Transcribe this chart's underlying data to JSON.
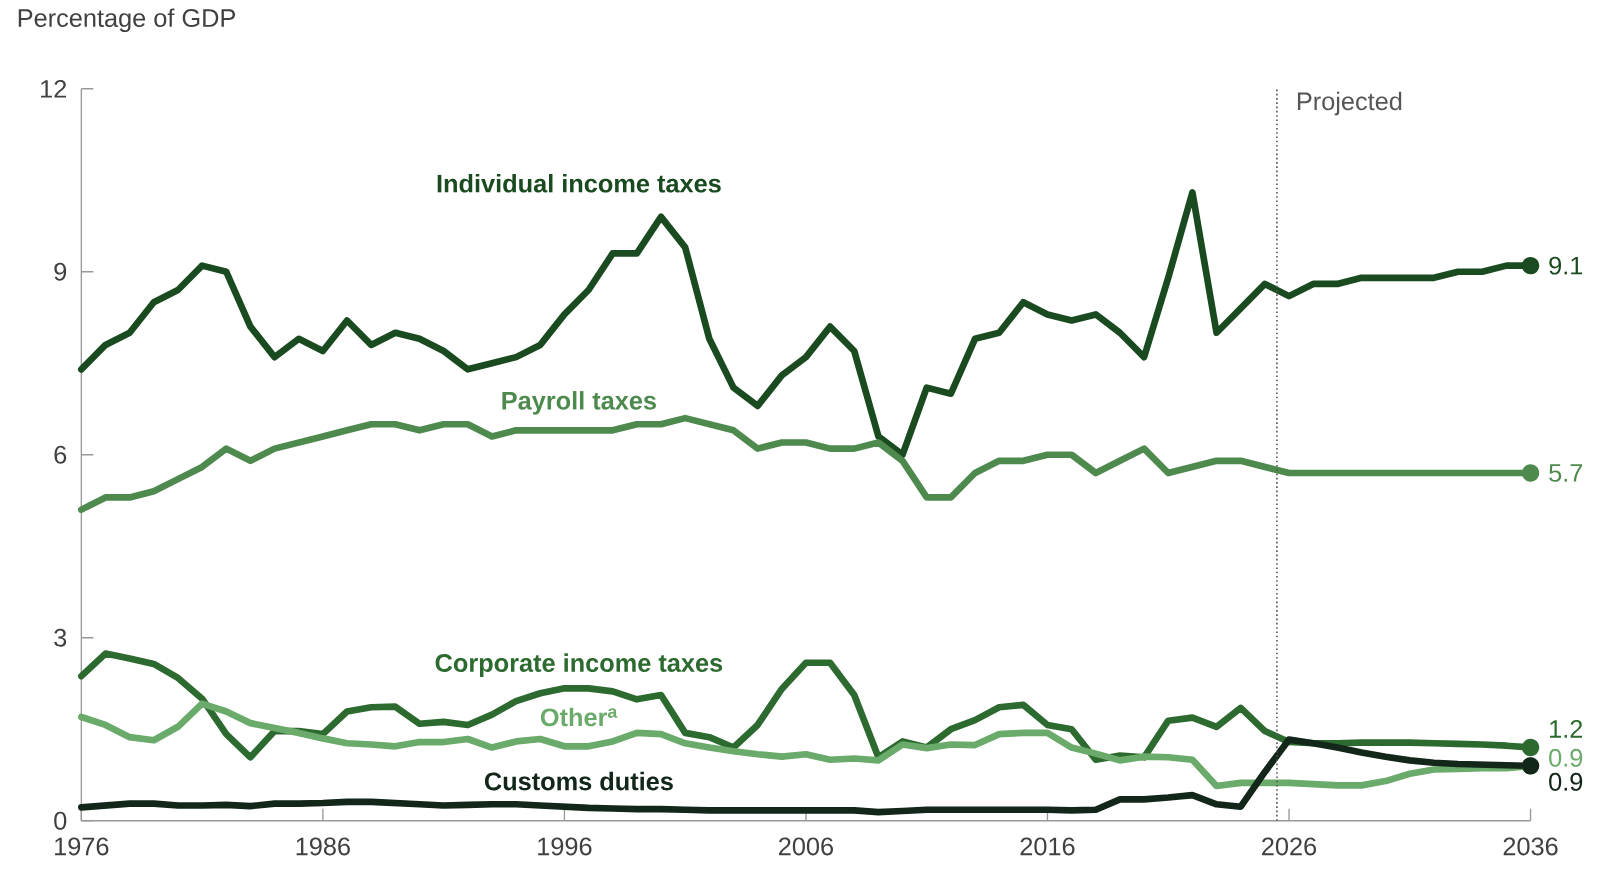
{
  "chart_data": {
    "type": "line",
    "ylabel": "Percentage of GDP",
    "x": [
      1976,
      1977,
      1978,
      1979,
      1980,
      1981,
      1982,
      1983,
      1984,
      1985,
      1986,
      1987,
      1988,
      1989,
      1990,
      1991,
      1992,
      1993,
      1994,
      1995,
      1996,
      1997,
      1998,
      1999,
      2000,
      2001,
      2002,
      2003,
      2004,
      2005,
      2006,
      2007,
      2008,
      2009,
      2010,
      2011,
      2012,
      2013,
      2014,
      2015,
      2016,
      2017,
      2018,
      2019,
      2020,
      2021,
      2022,
      2023,
      2024,
      2025,
      2026,
      2027,
      2028,
      2029,
      2030,
      2031,
      2032,
      2033,
      2034,
      2035,
      2036
    ],
    "xlim": [
      1976,
      2036
    ],
    "xticks": [
      1976,
      1986,
      1996,
      2006,
      2016,
      2026,
      2036
    ],
    "ylim": [
      0,
      12
    ],
    "yticks": [
      0,
      3,
      6,
      9,
      12
    ],
    "series": [
      {
        "name": "Individual income taxes",
        "color": "#1a4a1f",
        "values": [
          7.4,
          7.8,
          8.0,
          8.5,
          8.7,
          9.1,
          9.0,
          8.1,
          7.6,
          7.9,
          7.7,
          8.2,
          7.8,
          8.0,
          7.9,
          7.7,
          7.4,
          7.5,
          7.6,
          7.8,
          8.3,
          8.7,
          9.3,
          9.3,
          9.9,
          9.4,
          7.9,
          7.1,
          6.8,
          7.3,
          7.6,
          8.1,
          7.7,
          6.3,
          6.0,
          7.1,
          7.0,
          7.9,
          8.0,
          8.5,
          8.3,
          8.2,
          8.3,
          8.0,
          7.6,
          8.9,
          10.3,
          8.0,
          8.4,
          8.8,
          8.6,
          8.8,
          8.8,
          8.9,
          8.9,
          8.9,
          8.9,
          9.0,
          9.0,
          9.1,
          9.1
        ],
        "value_labels": [
          null,
          null,
          null,
          null,
          null,
          null,
          null,
          null,
          null,
          null,
          null,
          null,
          null,
          null,
          null,
          null,
          null,
          null,
          null,
          null,
          null,
          null,
          null,
          null,
          null,
          null,
          null,
          null,
          null,
          null,
          null,
          null,
          null,
          null,
          null,
          null,
          null,
          null,
          null,
          null,
          null,
          null,
          null,
          null,
          null,
          null,
          null,
          null,
          null,
          null,
          null,
          null,
          null,
          null,
          null,
          null,
          null,
          null,
          null,
          null,
          "9.1"
        ]
      },
      {
        "name": "Payroll taxes",
        "color": "#4e8a4e",
        "values": [
          5.1,
          5.3,
          5.3,
          5.4,
          5.6,
          5.8,
          6.1,
          5.9,
          6.1,
          6.2,
          6.3,
          6.4,
          6.5,
          6.5,
          6.4,
          6.5,
          6.5,
          6.3,
          6.4,
          6.4,
          6.4,
          6.4,
          6.4,
          6.5,
          6.5,
          6.6,
          6.5,
          6.4,
          6.1,
          6.2,
          6.2,
          6.1,
          6.1,
          6.2,
          5.9,
          5.3,
          5.3,
          5.7,
          5.9,
          5.9,
          6.0,
          6.0,
          5.7,
          5.9,
          6.1,
          5.7,
          5.8,
          5.9,
          5.9,
          5.8,
          5.7,
          5.7,
          5.7,
          5.7,
          5.7,
          5.7,
          5.7,
          5.7,
          5.7,
          5.7,
          5.7
        ],
        "value_labels": [
          null,
          null,
          null,
          null,
          null,
          null,
          null,
          null,
          null,
          null,
          null,
          null,
          null,
          null,
          null,
          null,
          null,
          null,
          null,
          null,
          null,
          null,
          null,
          null,
          null,
          null,
          null,
          null,
          null,
          null,
          null,
          null,
          null,
          null,
          null,
          null,
          null,
          null,
          null,
          null,
          null,
          null,
          null,
          null,
          null,
          null,
          null,
          null,
          null,
          null,
          null,
          null,
          null,
          null,
          null,
          null,
          null,
          null,
          null,
          null,
          "5.7"
        ]
      },
      {
        "name": "Corporate income taxes",
        "color": "#2d6a30",
        "values": [
          2.37,
          2.74,
          2.66,
          2.57,
          2.34,
          2.0,
          1.42,
          1.04,
          1.47,
          1.47,
          1.42,
          1.79,
          1.86,
          1.87,
          1.59,
          1.62,
          1.57,
          1.74,
          1.96,
          2.09,
          2.17,
          2.17,
          2.12,
          1.99,
          2.06,
          1.44,
          1.37,
          1.2,
          1.57,
          2.16,
          2.59,
          2.59,
          2.06,
          1.04,
          1.3,
          1.2,
          1.5,
          1.65,
          1.86,
          1.9,
          1.57,
          1.5,
          1.0,
          1.07,
          1.04,
          1.64,
          1.69,
          1.54,
          1.85,
          1.47,
          1.29,
          1.27,
          1.27,
          1.28,
          1.28,
          1.28,
          1.27,
          1.26,
          1.25,
          1.23,
          1.2
        ],
        "value_labels": [
          null,
          null,
          null,
          null,
          null,
          null,
          null,
          null,
          null,
          null,
          null,
          null,
          null,
          null,
          null,
          null,
          null,
          null,
          null,
          null,
          null,
          null,
          null,
          null,
          null,
          null,
          null,
          null,
          null,
          null,
          null,
          null,
          null,
          null,
          null,
          null,
          null,
          null,
          null,
          null,
          null,
          null,
          null,
          null,
          null,
          null,
          null,
          null,
          null,
          null,
          null,
          null,
          null,
          null,
          null,
          null,
          null,
          null,
          null,
          null,
          "1.2"
        ]
      },
      {
        "name": "Other$^{a}$",
        "color": "#6aaa6a",
        "values": [
          1.7,
          1.57,
          1.37,
          1.32,
          1.54,
          1.92,
          1.79,
          1.6,
          1.52,
          1.44,
          1.35,
          1.27,
          1.25,
          1.22,
          1.29,
          1.29,
          1.34,
          1.2,
          1.3,
          1.34,
          1.22,
          1.22,
          1.3,
          1.44,
          1.42,
          1.27,
          1.2,
          1.14,
          1.09,
          1.05,
          1.09,
          1.0,
          1.02,
          0.99,
          1.25,
          1.19,
          1.25,
          1.24,
          1.42,
          1.44,
          1.44,
          1.2,
          1.1,
          0.99,
          1.05,
          1.04,
          1.0,
          0.57,
          0.62,
          0.62,
          0.62,
          0.6,
          0.58,
          0.58,
          0.65,
          0.77,
          0.84,
          0.85,
          0.86,
          0.86,
          0.9
        ],
        "value_labels": [
          null,
          null,
          null,
          null,
          null,
          null,
          null,
          null,
          null,
          null,
          null,
          null,
          null,
          null,
          null,
          null,
          null,
          null,
          null,
          null,
          null,
          null,
          null,
          null,
          null,
          null,
          null,
          null,
          null,
          null,
          null,
          null,
          null,
          null,
          null,
          null,
          null,
          null,
          null,
          null,
          null,
          null,
          null,
          null,
          null,
          null,
          null,
          null,
          null,
          null,
          null,
          null,
          null,
          null,
          null,
          null,
          null,
          null,
          null,
          null,
          "0.9"
        ]
      },
      {
        "name": "Customs duties",
        "color": "#12261a",
        "values": [
          0.22,
          0.25,
          0.28,
          0.28,
          0.25,
          0.25,
          0.26,
          0.24,
          0.28,
          0.28,
          0.29,
          0.31,
          0.31,
          0.29,
          0.27,
          0.25,
          0.26,
          0.27,
          0.27,
          0.25,
          0.23,
          0.21,
          0.2,
          0.19,
          0.19,
          0.18,
          0.17,
          0.17,
          0.17,
          0.17,
          0.17,
          0.17,
          0.17,
          0.14,
          0.16,
          0.18,
          0.18,
          0.18,
          0.18,
          0.18,
          0.18,
          0.17,
          0.18,
          0.35,
          0.35,
          0.38,
          0.42,
          0.27,
          0.23,
          0.8,
          1.33,
          1.27,
          1.2,
          1.12,
          1.05,
          0.99,
          0.95,
          0.93,
          0.92,
          0.91,
          0.9
        ],
        "value_labels": [
          null,
          null,
          null,
          null,
          null,
          null,
          null,
          null,
          null,
          null,
          null,
          null,
          null,
          null,
          null,
          null,
          null,
          null,
          null,
          null,
          null,
          null,
          null,
          null,
          null,
          null,
          null,
          null,
          null,
          null,
          null,
          null,
          null,
          null,
          null,
          null,
          null,
          null,
          null,
          null,
          null,
          null,
          null,
          null,
          null,
          null,
          null,
          null,
          null,
          null,
          null,
          null,
          null,
          null,
          null,
          null,
          null,
          null,
          null,
          null,
          "0.9"
        ]
      }
    ],
    "ref_lines": [
      {
        "axis": "x",
        "value": 2025.5,
        "label": "Projected",
        "line_style": "dotted",
        "color": "#555555"
      }
    ]
  }
}
